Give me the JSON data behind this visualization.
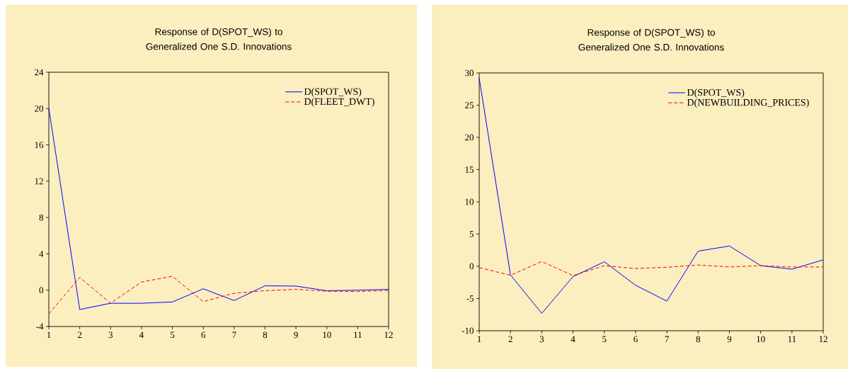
{
  "chart_data": [
    {
      "type": "line",
      "title": "Response of D(SPOT_WS) to Generalized One S.D. Innovations",
      "x": [
        1,
        2,
        3,
        4,
        5,
        6,
        7,
        8,
        9,
        10,
        11,
        12
      ],
      "xlim": [
        1,
        12
      ],
      "xticks": [
        1,
        2,
        3,
        4,
        5,
        6,
        7,
        8,
        9,
        10,
        11,
        12
      ],
      "ylim": [
        -4,
        24
      ],
      "yticks": [
        -4,
        0,
        4,
        8,
        12,
        16,
        20,
        24
      ],
      "legend": "top right",
      "grid": false,
      "series": [
        {
          "name": "D(SPOT_WS)",
          "color": "#0000ff",
          "line_style": "solid",
          "values": [
            20.0,
            -2.13,
            -1.44,
            -1.44,
            -1.3,
            0.15,
            -1.14,
            0.48,
            0.45,
            -0.06,
            0.0,
            0.09
          ]
        },
        {
          "name": "D(FLEET_DWT)",
          "color": "#ff0000",
          "line_style": "dashed",
          "values": [
            -2.6,
            1.4,
            -1.44,
            0.9,
            1.53,
            -1.26,
            -0.33,
            -0.06,
            0.09,
            -0.12,
            -0.15,
            -0.03
          ]
        }
      ]
    },
    {
      "type": "line",
      "title": "Response of D(SPOT_WS) to Generalized One S.D. Innovations",
      "x": [
        1,
        2,
        3,
        4,
        5,
        6,
        7,
        8,
        9,
        10,
        11,
        12
      ],
      "xlim": [
        1,
        12
      ],
      "xticks": [
        1,
        2,
        3,
        4,
        5,
        6,
        7,
        8,
        9,
        10,
        11,
        12
      ],
      "ylim": [
        -10,
        30
      ],
      "yticks": [
        -10,
        -5,
        0,
        5,
        10,
        15,
        20,
        25,
        30
      ],
      "legend": "top right",
      "grid": false,
      "series": [
        {
          "name": "D(SPOT_WS)",
          "color": "#0000ff",
          "line_style": "solid",
          "values": [
            29.2,
            -1.35,
            -7.3,
            -1.6,
            0.7,
            -2.95,
            -5.4,
            2.35,
            3.15,
            0.1,
            -0.45,
            1.0
          ]
        },
        {
          "name": "D(NEWBUILDING_PRICES)",
          "color": "#ff0000",
          "line_style": "dashed",
          "values": [
            -0.2,
            -1.4,
            0.75,
            -1.45,
            0.1,
            -0.35,
            -0.15,
            0.2,
            -0.1,
            0.1,
            -0.1,
            -0.1
          ]
        }
      ]
    }
  ]
}
